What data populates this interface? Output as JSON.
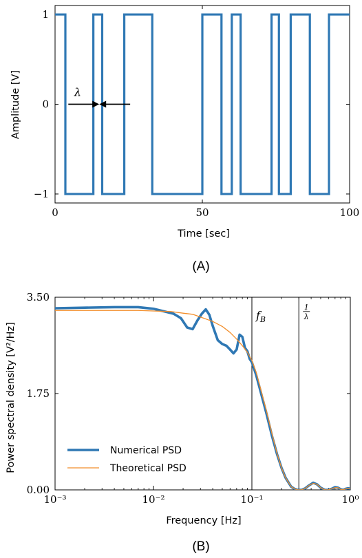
{
  "panel_a_label": "(A)",
  "panel_b_label": "(B)",
  "colors": {
    "numerical": "#2f78b4",
    "theoretical": "#f28e2b",
    "axis": "#000000"
  },
  "chart_data": [
    {
      "type": "line",
      "xlabel": "Time [sec]",
      "ylabel": "Amplitude [V]",
      "xlim": [
        0,
        100
      ],
      "ylim": [
        -1.1,
        1.1
      ],
      "xticks": [
        "0",
        "50",
        "100"
      ],
      "yticks": [
        "−1",
        "0",
        "1"
      ],
      "annotation": "λ",
      "annotation_arrow_x": [
        4.5,
        25.5
      ],
      "annotation_arrow_meet_x": 15,
      "series": [
        {
          "steps": [
            [
              0,
              1
            ],
            [
              3.5,
              1
            ],
            [
              3.5,
              -1
            ],
            [
              13,
              -1
            ],
            [
              13,
              1
            ],
            [
              16,
              1
            ],
            [
              16,
              -1
            ],
            [
              23.5,
              -1
            ],
            [
              23.5,
              1
            ],
            [
              33,
              1
            ],
            [
              33,
              -1
            ],
            [
              50,
              -1
            ],
            [
              50,
              1
            ],
            [
              56.5,
              1
            ],
            [
              56.5,
              -1
            ],
            [
              60,
              -1
            ],
            [
              60,
              1
            ],
            [
              63,
              1
            ],
            [
              63,
              -1
            ],
            [
              73.5,
              -1
            ],
            [
              73.5,
              1
            ],
            [
              76,
              1
            ],
            [
              76,
              -1
            ],
            [
              80,
              -1
            ],
            [
              80,
              1
            ],
            [
              86.5,
              1
            ],
            [
              86.5,
              -1
            ],
            [
              93,
              -1
            ],
            [
              93,
              1
            ],
            [
              100,
              1
            ]
          ]
        }
      ]
    },
    {
      "type": "line",
      "xlabel": "Frequency [Hz]",
      "ylabel": "Power spectral density [V²/Hz]",
      "xscale": "log",
      "xlim": [
        0.001,
        1
      ],
      "ylim": [
        0,
        3.5
      ],
      "xtick_values": [
        0.001,
        0.01,
        0.1,
        1
      ],
      "xticks": [
        "10⁻³",
        "10⁻²",
        "10⁻¹",
        "10⁰"
      ],
      "yticks": [
        "0.00",
        "1.75",
        "3.50"
      ],
      "vlines": [
        {
          "x": 0.1,
          "label": "f_B"
        },
        {
          "x": 0.3,
          "label": "1/λ"
        }
      ],
      "legend_position": "lower-left",
      "series": [
        {
          "name": "Numerical PSD",
          "x": [
            0.001,
            0.002,
            0.004,
            0.007,
            0.01,
            0.013,
            0.016,
            0.019,
            0.022,
            0.025,
            0.028,
            0.031,
            0.034,
            0.037,
            0.04,
            0.045,
            0.05,
            0.055,
            0.06,
            0.065,
            0.07,
            0.075,
            0.08,
            0.085,
            0.09,
            0.095,
            0.1,
            0.11,
            0.12,
            0.14,
            0.16,
            0.18,
            0.2,
            0.22,
            0.25,
            0.27,
            0.29,
            0.3,
            0.32,
            0.35,
            0.38,
            0.42,
            0.46,
            0.5,
            0.55,
            0.6,
            0.65,
            0.7,
            0.75,
            0.8,
            0.85,
            0.9,
            0.95,
            1.0
          ],
          "y": [
            3.3,
            3.31,
            3.32,
            3.32,
            3.29,
            3.24,
            3.2,
            3.12,
            2.95,
            2.92,
            3.08,
            3.2,
            3.28,
            3.18,
            2.98,
            2.72,
            2.65,
            2.62,
            2.55,
            2.48,
            2.55,
            2.82,
            2.78,
            2.58,
            2.52,
            2.38,
            2.32,
            2.1,
            1.85,
            1.4,
            0.98,
            0.65,
            0.4,
            0.22,
            0.06,
            0.02,
            0.0,
            0.0,
            0.0,
            0.03,
            0.08,
            0.13,
            0.1,
            0.04,
            0.0,
            0.0,
            0.02,
            0.05,
            0.04,
            0.01,
            0.0,
            0.02,
            0.03,
            0.02
          ]
        },
        {
          "name": "Theoretical PSD",
          "x": [
            0.001,
            0.002,
            0.004,
            0.007,
            0.01,
            0.015,
            0.02,
            0.025,
            0.03,
            0.04,
            0.05,
            0.06,
            0.07,
            0.08,
            0.09,
            0.1,
            0.11,
            0.12,
            0.14,
            0.16,
            0.18,
            0.2,
            0.22,
            0.25,
            0.27,
            0.29,
            0.3,
            0.32,
            0.35,
            0.38,
            0.42,
            0.46,
            0.5,
            0.55,
            0.6,
            0.65,
            0.7,
            0.75,
            0.8,
            0.85,
            0.9,
            0.95,
            1.0
          ],
          "y": [
            3.26,
            3.26,
            3.26,
            3.26,
            3.25,
            3.24,
            3.21,
            3.19,
            3.14,
            3.06,
            2.97,
            2.86,
            2.74,
            2.62,
            2.5,
            2.35,
            2.15,
            1.9,
            1.45,
            1.02,
            0.66,
            0.4,
            0.22,
            0.06,
            0.02,
            0.0,
            0.0,
            0.0,
            0.03,
            0.08,
            0.12,
            0.1,
            0.04,
            0.0,
            0.0,
            0.02,
            0.04,
            0.04,
            0.01,
            0.0,
            0.02,
            0.03,
            0.02
          ]
        }
      ]
    }
  ]
}
